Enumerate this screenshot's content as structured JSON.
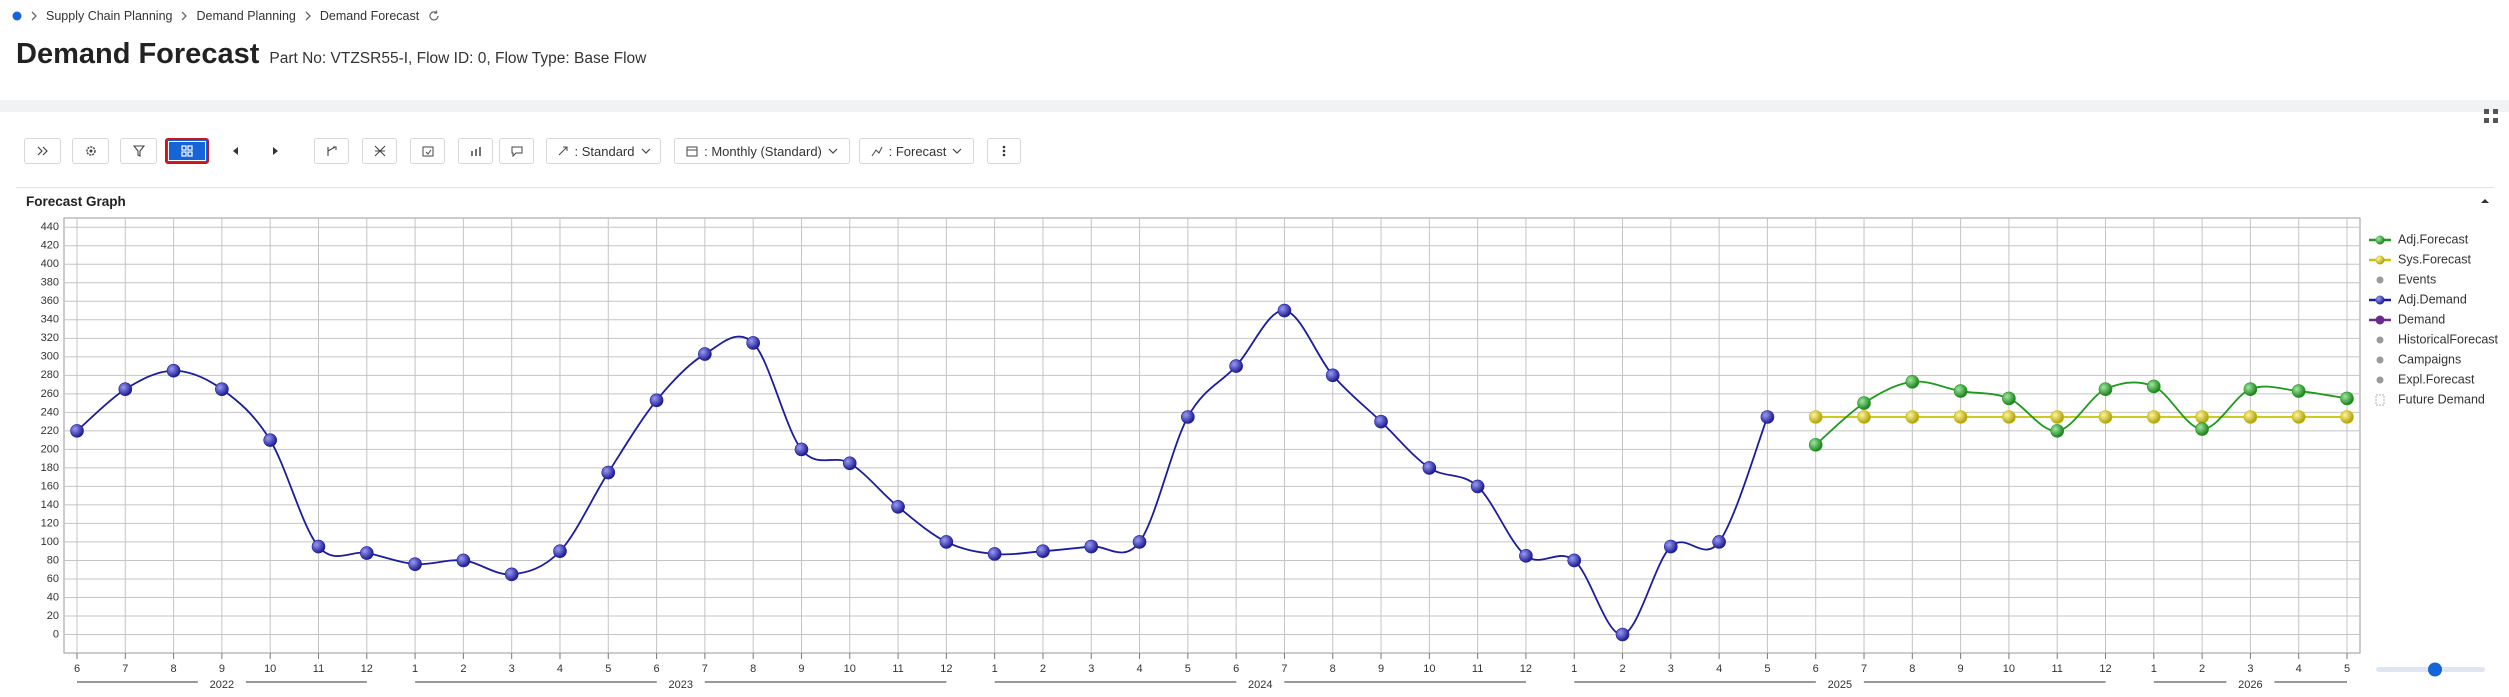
{
  "breadcrumb": [
    "Supply Chain Planning",
    "Demand Planning",
    "Demand Forecast"
  ],
  "header": {
    "title": "Demand Forecast",
    "subtitle": "Part No: VTZSR55-I, Flow ID: 0, Flow Type: Base Flow"
  },
  "toolbar": {
    "dropdowns": [
      ": Standard",
      ": Monthly (Standard)",
      ": Forecast"
    ]
  },
  "panel": {
    "title": "Forecast Graph"
  },
  "chart_data": {
    "type": "line",
    "smooth": true,
    "grid": true,
    "legend": "right",
    "categories": [
      "6",
      "7",
      "8",
      "9",
      "10",
      "11",
      "12",
      "1",
      "2",
      "3",
      "4",
      "5",
      "6",
      "7",
      "8",
      "9",
      "10",
      "11",
      "12",
      "1",
      "2",
      "3",
      "4",
      "5",
      "6",
      "7",
      "8",
      "9",
      "10",
      "11",
      "12",
      "1",
      "2",
      "3",
      "4",
      "5",
      "6",
      "7",
      "8",
      "9",
      "10",
      "11",
      "12",
      "1",
      "2",
      "3",
      "4",
      "5"
    ],
    "year_labels": [
      "2022",
      "2023",
      "2024",
      "2025",
      "2026"
    ],
    "ylim": [
      -20,
      450
    ],
    "yticks": [
      0,
      20,
      40,
      60,
      80,
      100,
      120,
      140,
      160,
      180,
      200,
      220,
      240,
      260,
      280,
      300,
      320,
      340,
      360,
      380,
      400,
      420,
      440
    ],
    "series": [
      {
        "name": "Adj.Forecast",
        "color": "#1e9a1e",
        "legend_symbol": "line",
        "values": [
          null,
          null,
          null,
          null,
          null,
          null,
          null,
          null,
          null,
          null,
          null,
          null,
          null,
          null,
          null,
          null,
          null,
          null,
          null,
          null,
          null,
          null,
          null,
          null,
          null,
          null,
          null,
          null,
          null,
          null,
          null,
          null,
          null,
          null,
          null,
          null,
          205,
          250,
          273,
          263,
          255,
          220,
          265,
          268,
          222,
          265,
          263,
          255
        ]
      },
      {
        "name": "Sys.Forecast",
        "color": "#c9c200",
        "legend_symbol": "line",
        "values": [
          null,
          null,
          null,
          null,
          null,
          null,
          null,
          null,
          null,
          null,
          null,
          null,
          null,
          null,
          null,
          null,
          null,
          null,
          null,
          null,
          null,
          null,
          null,
          null,
          null,
          null,
          null,
          null,
          null,
          null,
          null,
          null,
          null,
          null,
          null,
          null,
          235,
          235,
          235,
          235,
          235,
          235,
          235,
          235,
          235,
          235,
          235,
          235
        ]
      },
      {
        "name": "Events",
        "color": "#9a9a9a",
        "legend_symbol": "dot",
        "values": [
          null,
          null,
          null,
          null,
          null,
          null,
          null,
          null,
          null,
          null,
          null,
          null,
          null,
          null,
          null,
          null,
          null,
          null,
          null,
          null,
          null,
          null,
          null,
          null,
          null,
          null,
          null,
          null,
          null,
          null,
          null,
          null,
          null,
          null,
          null,
          null,
          null,
          null,
          null,
          null,
          null,
          null,
          null,
          null,
          null,
          null,
          null,
          null
        ]
      },
      {
        "name": "Adj.Demand",
        "color": "#1c1ca0",
        "legend_symbol": "line",
        "values": [
          220,
          265,
          285,
          265,
          210,
          95,
          88,
          76,
          80,
          65,
          90,
          175,
          253,
          303,
          315,
          200,
          185,
          138,
          100,
          87,
          90,
          95,
          100,
          235,
          290,
          350,
          280,
          230,
          180,
          160,
          85,
          80,
          0,
          95,
          100,
          235,
          null,
          null,
          null,
          null,
          null,
          null,
          null,
          null,
          null,
          null,
          null,
          null
        ]
      },
      {
        "name": "Demand",
        "color": "#6b2a8c",
        "legend_symbol": "line",
        "values": [
          null,
          null,
          null,
          null,
          null,
          null,
          null,
          null,
          null,
          null,
          null,
          null,
          null,
          null,
          null,
          null,
          null,
          null,
          null,
          null,
          null,
          null,
          null,
          null,
          null,
          null,
          null,
          null,
          null,
          null,
          null,
          null,
          null,
          null,
          null,
          null,
          null,
          null,
          null,
          null,
          null,
          null,
          null,
          null,
          null,
          null,
          null,
          null
        ]
      },
      {
        "name": "HistoricalForecast",
        "color": "#9a9a9a",
        "legend_symbol": "dot",
        "values": [
          null,
          null,
          null,
          null,
          null,
          null,
          null,
          null,
          null,
          null,
          null,
          null,
          null,
          null,
          null,
          null,
          null,
          null,
          null,
          null,
          null,
          null,
          null,
          null,
          null,
          null,
          null,
          null,
          null,
          null,
          null,
          null,
          null,
          null,
          null,
          null,
          null,
          null,
          null,
          null,
          null,
          null,
          null,
          null,
          null,
          null,
          null,
          null
        ]
      },
      {
        "name": "Campaigns",
        "color": "#9a9a9a",
        "legend_symbol": "dot",
        "values": [
          null,
          null,
          null,
          null,
          null,
          null,
          null,
          null,
          null,
          null,
          null,
          null,
          null,
          null,
          null,
          null,
          null,
          null,
          null,
          null,
          null,
          null,
          null,
          null,
          null,
          null,
          null,
          null,
          null,
          null,
          null,
          null,
          null,
          null,
          null,
          null,
          null,
          null,
          null,
          null,
          null,
          null,
          null,
          null,
          null,
          null,
          null,
          null
        ]
      },
      {
        "name": "Expl.Forecast",
        "color": "#9a9a9a",
        "legend_symbol": "dot",
        "values": [
          null,
          null,
          null,
          null,
          null,
          null,
          null,
          null,
          null,
          null,
          null,
          null,
          null,
          null,
          null,
          null,
          null,
          null,
          null,
          null,
          null,
          null,
          null,
          null,
          null,
          null,
          null,
          null,
          null,
          null,
          null,
          null,
          null,
          null,
          null,
          null,
          null,
          null,
          null,
          null,
          null,
          null,
          null,
          null,
          null,
          null,
          null,
          null
        ]
      },
      {
        "name": "Future Demand",
        "color": "#b0b0b0",
        "legend_symbol": "box",
        "values": [
          null,
          null,
          null,
          null,
          null,
          null,
          null,
          null,
          null,
          null,
          null,
          null,
          null,
          null,
          null,
          null,
          null,
          null,
          null,
          null,
          null,
          null,
          null,
          null,
          null,
          null,
          null,
          null,
          null,
          null,
          null,
          null,
          null,
          null,
          null,
          null,
          null,
          null,
          null,
          null,
          null,
          null,
          null,
          null,
          null,
          null,
          null,
          null
        ]
      }
    ]
  }
}
